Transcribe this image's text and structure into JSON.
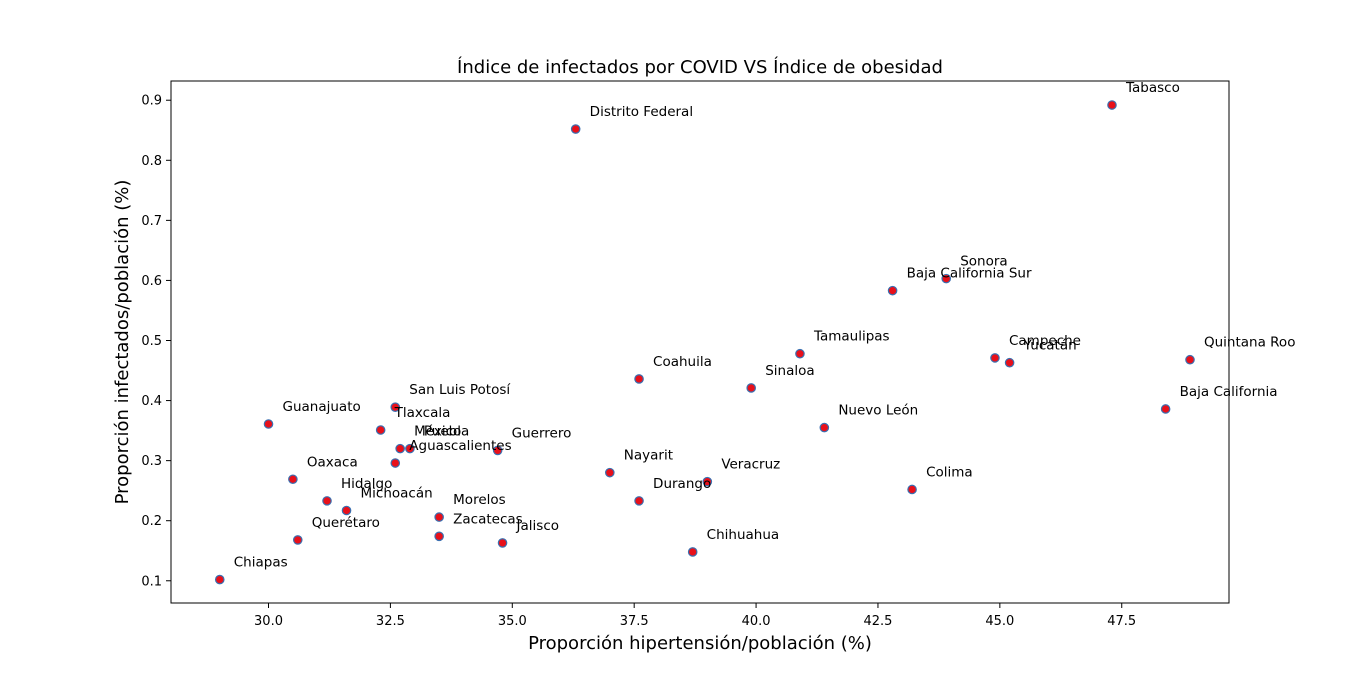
{
  "chart_data": {
    "type": "scatter",
    "title": "Índice de infectados por COVID VS Índice de obesidad",
    "xlabel": "Proporción hipertensión/población (%)",
    "ylabel": "Proporción infectados/población (%)",
    "xlim": [
      28.0,
      49.7
    ],
    "ylim": [
      0.063,
      0.932
    ],
    "xticks": [
      "30.0",
      "32.5",
      "35.0",
      "37.5",
      "40.0",
      "42.5",
      "45.0",
      "47.5"
    ],
    "xtick_values": [
      30.0,
      32.5,
      35.0,
      37.5,
      40.0,
      42.5,
      45.0,
      47.5
    ],
    "yticks": [
      "0.1",
      "0.2",
      "0.3",
      "0.4",
      "0.5",
      "0.6",
      "0.7",
      "0.8",
      "0.9"
    ],
    "ytick_values": [
      0.1,
      0.2,
      0.3,
      0.4,
      0.5,
      0.6,
      0.7,
      0.8,
      0.9
    ],
    "marker_face": "#e8101a",
    "marker_edge": "#3a6fb0",
    "points": [
      {
        "label": "Tabasco",
        "x": 47.3,
        "y": 0.892
      },
      {
        "label": "Distrito Federal",
        "x": 36.3,
        "y": 0.852
      },
      {
        "label": "Sonora",
        "x": 43.9,
        "y": 0.603
      },
      {
        "label": "Baja California Sur",
        "x": 42.8,
        "y": 0.583
      },
      {
        "label": "Tamaulipas",
        "x": 40.9,
        "y": 0.478
      },
      {
        "label": "Campeche",
        "x": 44.9,
        "y": 0.471
      },
      {
        "label": "Yucatán",
        "x": 45.2,
        "y": 0.463
      },
      {
        "label": "Quintana Roo",
        "x": 48.9,
        "y": 0.468
      },
      {
        "label": "Coahuila",
        "x": 37.6,
        "y": 0.436
      },
      {
        "label": "Sinaloa",
        "x": 39.9,
        "y": 0.421
      },
      {
        "label": "Baja California",
        "x": 48.4,
        "y": 0.386
      },
      {
        "label": "San Luis Potosí",
        "x": 32.6,
        "y": 0.389
      },
      {
        "label": "Nuevo León",
        "x": 41.4,
        "y": 0.355
      },
      {
        "label": "Guanajuato",
        "x": 30.0,
        "y": 0.361
      },
      {
        "label": "Tlaxcala",
        "x": 32.3,
        "y": 0.351
      },
      {
        "label": "México",
        "x": 32.7,
        "y": 0.32
      },
      {
        "label": "Puebla",
        "x": 32.9,
        "y": 0.32
      },
      {
        "label": "Aguascalientes",
        "x": 32.6,
        "y": 0.296
      },
      {
        "label": "Guerrero",
        "x": 34.7,
        "y": 0.317
      },
      {
        "label": "Nayarit",
        "x": 37.0,
        "y": 0.28
      },
      {
        "label": "Veracruz",
        "x": 39.0,
        "y": 0.265
      },
      {
        "label": "Oaxaca",
        "x": 30.5,
        "y": 0.269
      },
      {
        "label": "Colima",
        "x": 43.2,
        "y": 0.252
      },
      {
        "label": "Durango",
        "x": 37.6,
        "y": 0.233
      },
      {
        "label": "Hidalgo",
        "x": 31.2,
        "y": 0.233
      },
      {
        "label": "Michoacán",
        "x": 31.6,
        "y": 0.217
      },
      {
        "label": "Morelos",
        "x": 33.5,
        "y": 0.206
      },
      {
        "label": "Zacatecas",
        "x": 33.5,
        "y": 0.174
      },
      {
        "label": "Querétaro",
        "x": 30.6,
        "y": 0.168
      },
      {
        "label": "Jalisco",
        "x": 34.8,
        "y": 0.163
      },
      {
        "label": "Chihuahua",
        "x": 38.7,
        "y": 0.148
      },
      {
        "label": "Chiapas",
        "x": 29.0,
        "y": 0.102
      }
    ]
  }
}
